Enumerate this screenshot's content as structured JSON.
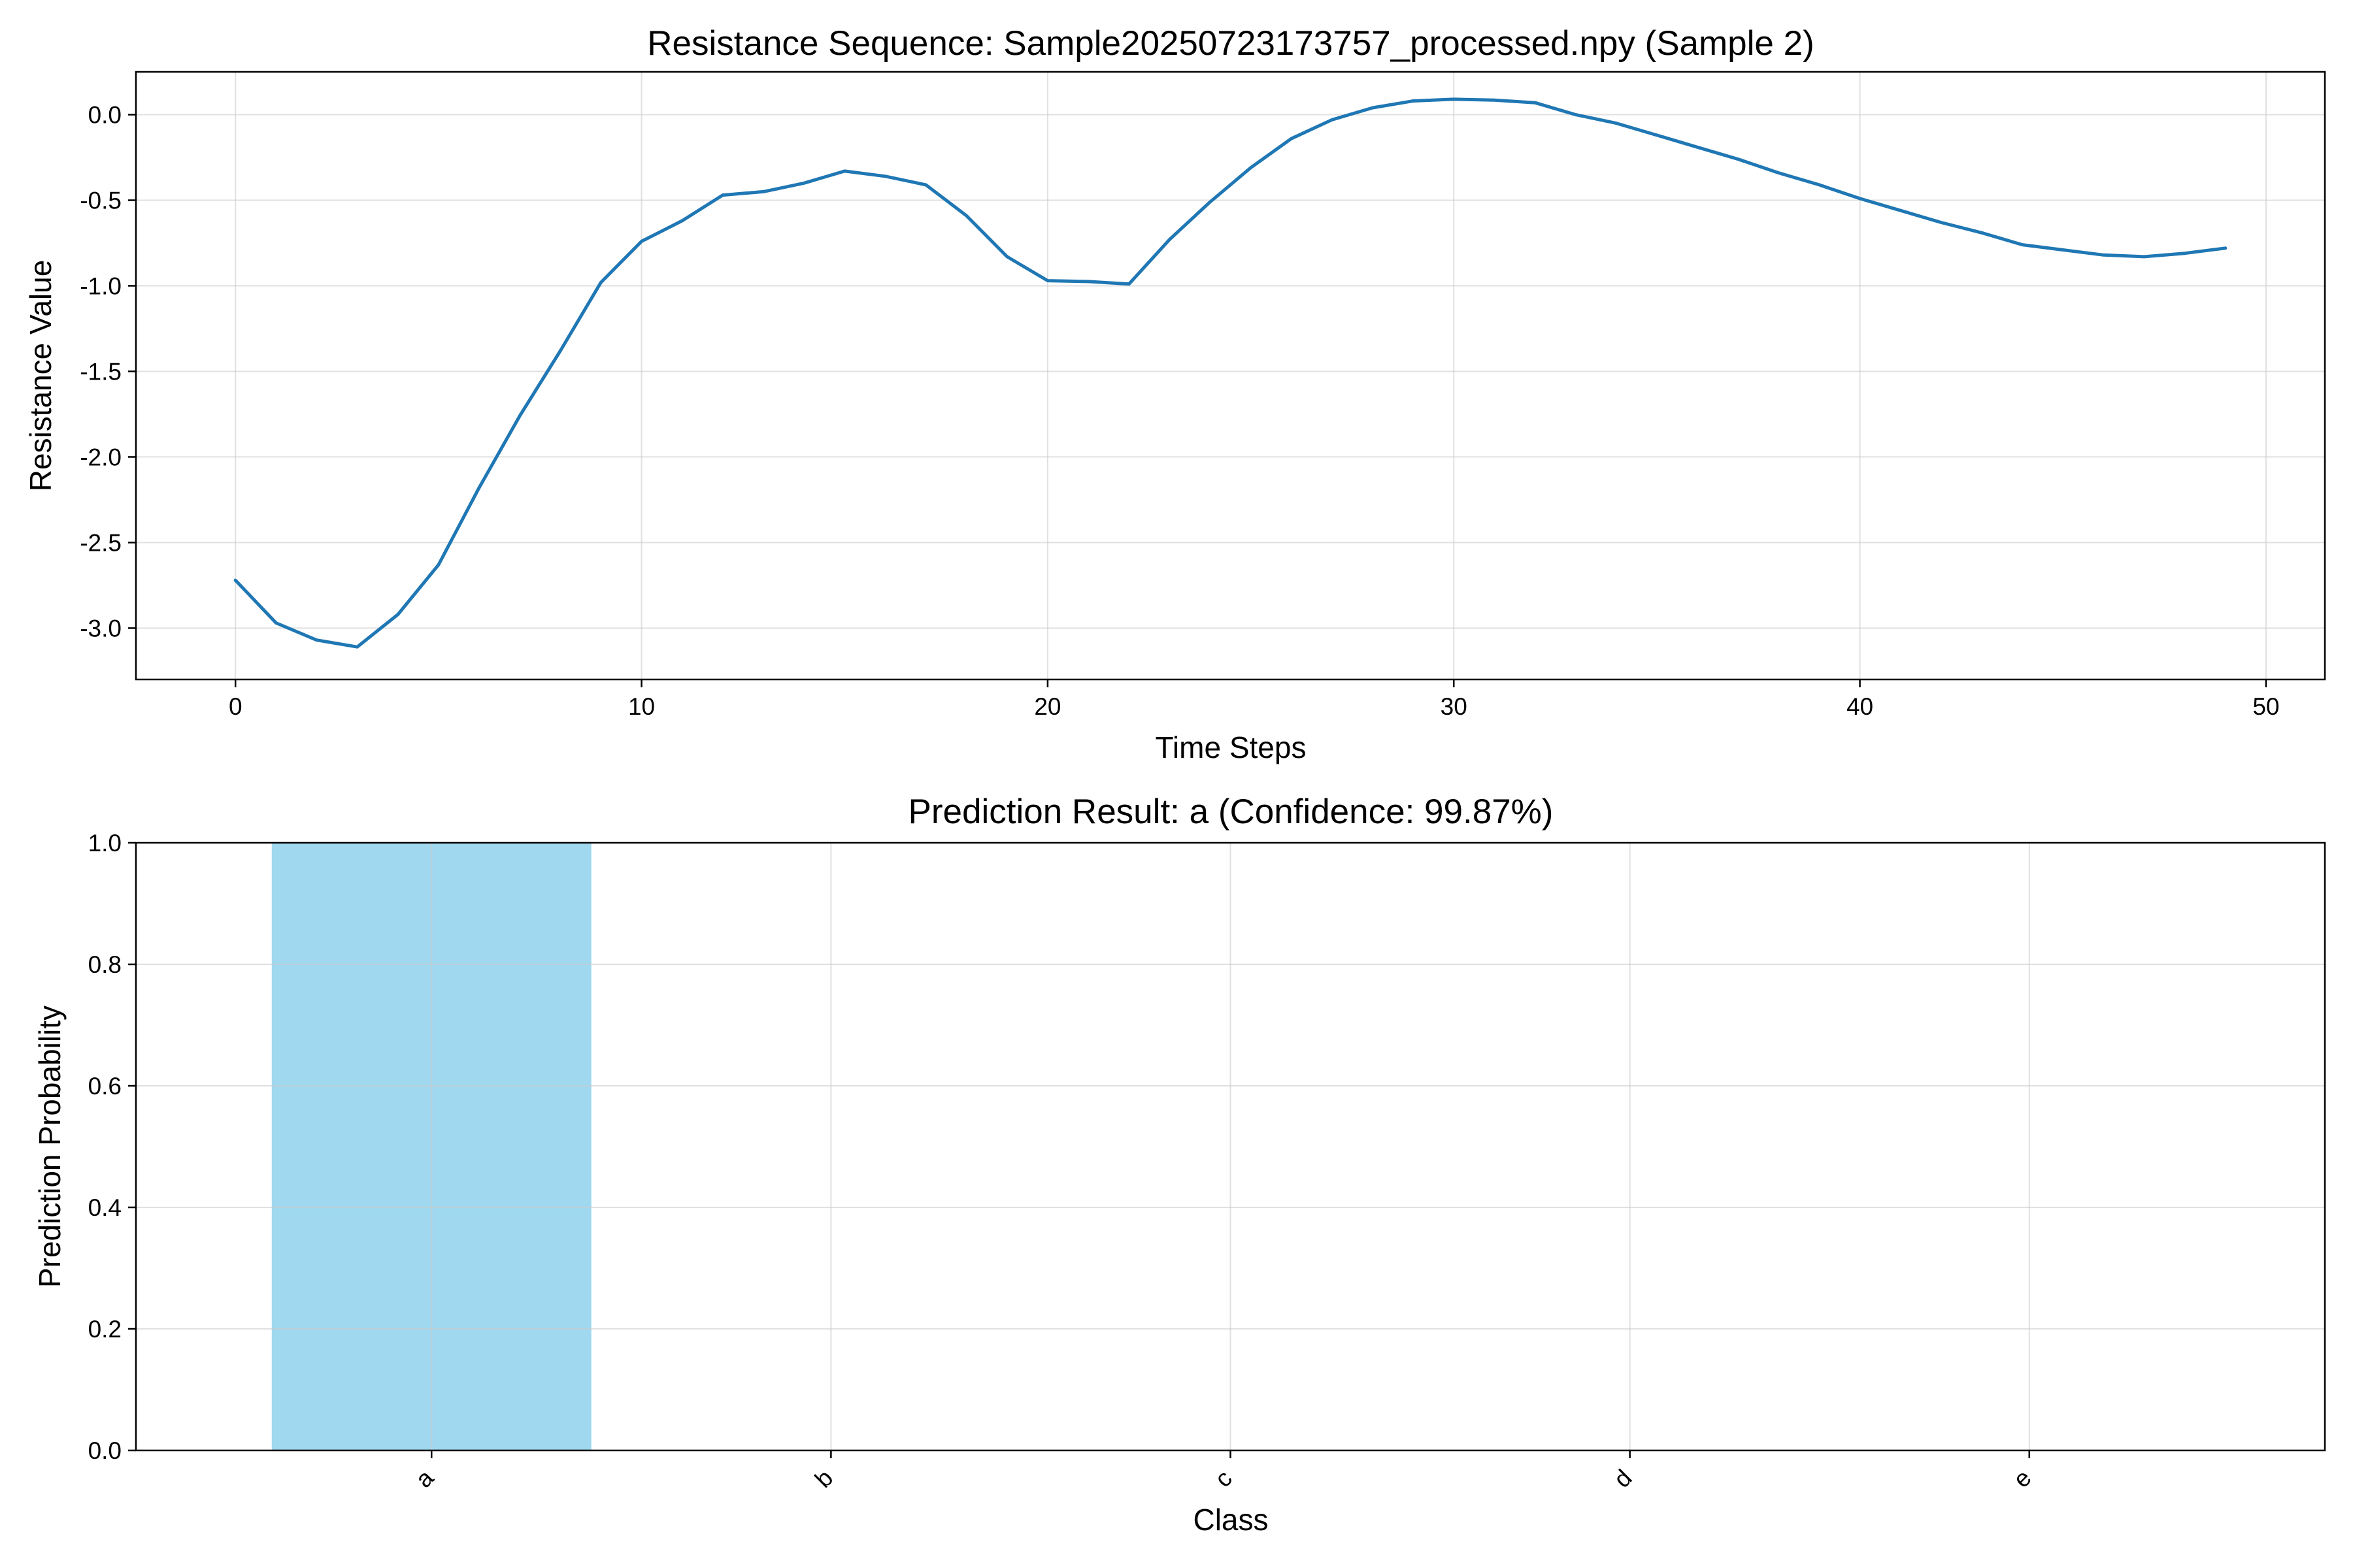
{
  "chart_data": [
    {
      "type": "line",
      "title": "Resistance Sequence: Sample20250723173757_processed.npy (Sample 2)",
      "xlabel": "Time Steps",
      "ylabel": "Resistance Value",
      "xlim": [
        -2.45,
        51.45
      ],
      "ylim": [
        -3.3,
        0.25
      ],
      "xticks": [
        0,
        10,
        20,
        30,
        40,
        50
      ],
      "xtick_labels": [
        "0",
        "10",
        "20",
        "30",
        "40",
        "50"
      ],
      "yticks": [
        0.0,
        -0.5,
        -1.0,
        -1.5,
        -2.0,
        -2.5,
        -3.0
      ],
      "ytick_labels": [
        "0.0",
        "-0.5",
        "-1.0",
        "-1.5",
        "-2.0",
        "-2.5",
        "-3.0"
      ],
      "grid": true,
      "series": [
        {
          "color": "#1f77b4",
          "x": [
            0,
            1,
            2,
            3,
            4,
            5,
            6,
            7,
            8,
            9,
            10,
            11,
            12,
            13,
            14,
            15,
            16,
            17,
            18,
            19,
            20,
            21,
            22,
            23,
            24,
            25,
            26,
            27,
            28,
            29,
            30,
            31,
            32,
            33,
            34,
            35,
            36,
            37,
            38,
            39,
            40,
            41,
            42,
            43,
            44,
            45,
            46,
            47,
            48,
            49
          ],
          "y": [
            -2.72,
            -2.97,
            -3.07,
            -3.11,
            -2.92,
            -2.63,
            -2.18,
            -1.76,
            -1.38,
            -0.98,
            -0.74,
            -0.62,
            -0.47,
            -0.45,
            -0.4,
            -0.33,
            -0.36,
            -0.41,
            -0.59,
            -0.83,
            -0.97,
            -0.975,
            -0.99,
            -0.73,
            -0.51,
            -0.31,
            -0.14,
            -0.03,
            0.04,
            0.08,
            0.09,
            0.085,
            0.07,
            0.0,
            -0.05,
            -0.12,
            -0.19,
            -0.26,
            -0.34,
            -0.41,
            -0.49,
            -0.56,
            -0.63,
            -0.69,
            -0.76,
            -0.79,
            -0.82,
            -0.83,
            -0.81,
            -0.78
          ]
        }
      ]
    },
    {
      "type": "bar",
      "title": "Prediction Result: a (Confidence: 99.87%)",
      "xlabel": "Class",
      "ylabel": "Prediction Probability",
      "categories": [
        "a",
        "b",
        "c",
        "d",
        "e"
      ],
      "values": [
        0.9987,
        0.0,
        0.0,
        0.0,
        0.0
      ],
      "color": "#87ceeb",
      "ylim": [
        0.0,
        1.0
      ],
      "yticks": [
        0.0,
        0.2,
        0.4,
        0.6,
        0.8,
        1.0
      ],
      "ytick_labels": [
        "0.0",
        "0.2",
        "0.4",
        "0.6",
        "0.8",
        "1.0"
      ],
      "grid": true
    }
  ]
}
